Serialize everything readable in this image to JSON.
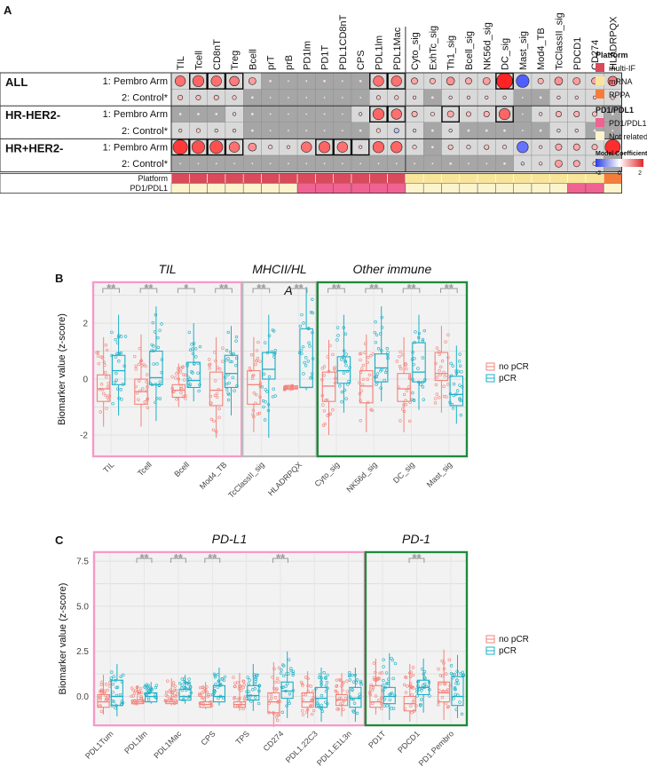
{
  "panels": {
    "a": "A",
    "b": "B",
    "c": "C"
  },
  "heatmap": {
    "columns": [
      "TIL",
      "Tcell",
      "CD8nT",
      "Treg",
      "Bcell",
      "prT",
      "prB",
      "PD1lm",
      "PD1T",
      "PDL1CD8nT",
      "CPS",
      "PDL1lm",
      "PDL1Mac",
      "Cyto_sig",
      "ExhTc_sig",
      "Th1_sig",
      "Bcell_sig",
      "NK56d_sig",
      "DC_sig",
      "Mast_sig",
      "Mod4_TB",
      "TcClassII_sig",
      "PDCD1",
      "CD274",
      "HLADRPQX"
    ],
    "groups": [
      {
        "name": "ALL",
        "rows": [
          "1: Pembro Arm",
          "2: Control*"
        ]
      },
      {
        "name": "HR-HER2-",
        "rows": [
          "1: Pembro Arm",
          "2: Control*"
        ]
      },
      {
        "name": "HR+HER2-",
        "rows": [
          "1: Pembro Arm",
          "2: Control*"
        ]
      }
    ],
    "coefficients": [
      [
        1.3,
        1.4,
        1.3,
        1.2,
        0.9,
        0.3,
        0.1,
        0.2,
        0.3,
        0.2,
        0.3,
        1.3,
        1.3,
        0.8,
        0.7,
        1.0,
        0.8,
        0.9,
        2.0,
        -1.6,
        0.7,
        1.0,
        0.9,
        0.8,
        1.2
      ],
      [
        0.6,
        0.6,
        0.6,
        0.5,
        0.3,
        0.1,
        0.1,
        0.1,
        0.1,
        0.1,
        0.1,
        0.5,
        0.5,
        0.4,
        0.3,
        0.4,
        0.4,
        0.4,
        0.4,
        -0.1,
        0.3,
        0.4,
        0.4,
        0.4,
        0.5
      ],
      [
        0.3,
        0.3,
        0.3,
        0.4,
        0.3,
        0.2,
        0.1,
        0.1,
        0.2,
        0.1,
        0.4,
        1.4,
        1.3,
        0.7,
        0.5,
        0.8,
        0.6,
        0.7,
        1.4,
        0.1,
        0.4,
        0.7,
        0.7,
        0.6,
        0.3
      ],
      [
        0.4,
        0.5,
        0.4,
        0.4,
        0.3,
        0.1,
        0.1,
        0.2,
        0.1,
        0.2,
        0.3,
        0.5,
        -0.6,
        0.4,
        0.3,
        0.4,
        0.3,
        0.3,
        0.3,
        0.2,
        0.3,
        0.4,
        0.4,
        0.3,
        0.2
      ],
      [
        1.8,
        1.6,
        1.6,
        1.3,
        1.0,
        0.5,
        0.4,
        1.3,
        1.4,
        1.3,
        0.4,
        1.4,
        1.4,
        0.5,
        0.3,
        0.6,
        0.5,
        0.6,
        0.5,
        -1.4,
        0.4,
        0.8,
        0.8,
        0.7,
        1.9
      ],
      [
        0.1,
        0.1,
        0.1,
        0.1,
        0.1,
        0.1,
        0.1,
        0.1,
        0.1,
        0.1,
        0.1,
        0.1,
        0.1,
        0.2,
        0.1,
        0.3,
        0.2,
        0.2,
        0.3,
        -0.4,
        0.4,
        0.9,
        0.8,
        0.5,
        0.2
      ]
    ],
    "significant_boxes": [
      [
        0,
        1
      ],
      [
        0,
        2
      ],
      [
        0,
        3
      ],
      [
        0,
        11
      ],
      [
        0,
        12
      ],
      [
        0,
        18
      ],
      [
        2,
        12
      ],
      [
        2,
        11
      ],
      [
        2,
        15
      ],
      [
        2,
        18
      ],
      [
        4,
        0
      ],
      [
        4,
        1
      ],
      [
        4,
        2
      ],
      [
        4,
        3
      ],
      [
        4,
        8
      ],
      [
        4,
        9
      ],
      [
        4,
        10
      ]
    ],
    "annotation_rows": [
      "Platform",
      "PD1/PDL1"
    ],
    "platform": [
      "multi-IF",
      "multi-IF",
      "multi-IF",
      "multi-IF",
      "multi-IF",
      "multi-IF",
      "multi-IF",
      "multi-IF",
      "multi-IF",
      "multi-IF",
      "multi-IF",
      "multi-IF",
      "multi-IF",
      "mRNA",
      "mRNA",
      "mRNA",
      "mRNA",
      "mRNA",
      "mRNA",
      "mRNA",
      "mRNA",
      "mRNA",
      "mRNA",
      "mRNA",
      "RPPA"
    ],
    "pd1pdl1": [
      0,
      0,
      0,
      0,
      0,
      0,
      0,
      1,
      1,
      1,
      1,
      1,
      1,
      0,
      0,
      0,
      0,
      0,
      0,
      0,
      0,
      0,
      1,
      1,
      0
    ],
    "legend": {
      "platform_title": "Platform",
      "platform_items": [
        {
          "label": "multi-IF",
          "color": "#d94a5a"
        },
        {
          "label": "mRNA",
          "color": "#f8e59a"
        },
        {
          "label": "RPPA",
          "color": "#f57d3a"
        }
      ],
      "pd_title": "PD1/PDL1",
      "pd_items": [
        {
          "label": "PD1/PDL1 related",
          "color": "#f06292"
        },
        {
          "label": "Not related",
          "color": "#fdf4cd"
        }
      ],
      "coef_title": "Model Coefficients",
      "coef_ticks": [
        "-2",
        "0",
        "2"
      ]
    }
  },
  "panel_b": {
    "ylabel": "Biomarker value (z-score)",
    "yticks": [
      "2",
      "0",
      "-2"
    ],
    "groups": [
      {
        "label": "TIL",
        "color": "#f49ac8"
      },
      {
        "label": "MHCII/HL",
        "label2": "A",
        "color": "#bbbbbb"
      },
      {
        "label": "Other immune",
        "color": "#1f8a3c"
      }
    ],
    "categories": [
      "TIL",
      "Tcell",
      "Bcell",
      "Mod4_TB",
      "TcClassII_sig",
      "HLADRPQX",
      "Cyto_sig",
      "NK56d_sig",
      "DC_sig",
      "Mast_sig"
    ],
    "sig": [
      "**",
      "**",
      "*",
      "**",
      "**",
      "**",
      "**",
      "**",
      "**",
      "**"
    ],
    "legend": [
      "no pCR",
      "pCR"
    ]
  },
  "panel_c": {
    "ylabel": "Biomarker value (z-score)",
    "yticks": [
      "7.5",
      "5.0",
      "2.5",
      "0.0"
    ],
    "groups": [
      {
        "label": "PD-L1",
        "color": "#f49ac8"
      },
      {
        "label": "PD-1",
        "color": "#1f8a3c"
      }
    ],
    "categories": [
      "PDL1Tum",
      "PDL1lm",
      "PDL1Mac",
      "CPS",
      "TPS",
      "CD274",
      "PDL1.22C3",
      "PDL1.E1L3n",
      "PD1T",
      "PDCD1",
      "PD1.Pembro"
    ],
    "sig": [
      "",
      "**",
      "**",
      "**",
      "",
      "**",
      "",
      "",
      "",
      "**",
      ""
    ],
    "legend": [
      "no pCR",
      "pCR"
    ]
  },
  "chart_data": [
    {
      "type": "heatmap",
      "title": "",
      "rows": [
        "ALL 1: Pembro Arm",
        "ALL 2: Control*",
        "HR-HER2- 1: Pembro Arm",
        "HR-HER2- 2: Control*",
        "HR+HER2- 1: Pembro Arm",
        "HR+HER2- 2: Control*"
      ],
      "note": "values are model coefficients on a -2..2 scale; see heatmap.coefficients"
    },
    {
      "type": "box",
      "categories": [
        "TIL",
        "Tcell",
        "Bcell",
        "Mod4_TB",
        "TcClassII_sig",
        "HLADRPQX",
        "Cyto_sig",
        "NK56d_sig",
        "DC_sig",
        "Mast_sig"
      ],
      "ylabel": "Biomarker value (z-score)",
      "ylim": [
        -2.7,
        3.4
      ],
      "series": [
        {
          "name": "no pCR",
          "color": "#f4827a",
          "q1": [
            -0.8,
            -0.9,
            -0.65,
            -0.95,
            -0.9,
            -0.35,
            -0.8,
            -0.85,
            -0.8,
            -0.05
          ],
          "median": [
            -0.35,
            -0.45,
            -0.4,
            -0.4,
            -0.2,
            -0.35,
            -0.25,
            -0.25,
            -0.35,
            0.2
          ],
          "q3": [
            0.15,
            0.0,
            -0.2,
            0.25,
            0.3,
            -0.25,
            0.25,
            0.3,
            0.2,
            0.95
          ],
          "min": [
            -1.7,
            -1.7,
            -1.0,
            -2.1,
            -1.9,
            -0.4,
            -2.0,
            -1.9,
            -1.9,
            -1.2
          ],
          "max": [
            1.5,
            1.6,
            0.55,
            1.5,
            1.5,
            -0.2,
            1.4,
            1.6,
            1.5,
            1.9
          ]
        },
        {
          "name": "pCR",
          "color": "#1ab0c7",
          "q1": [
            -0.2,
            -0.2,
            -0.3,
            -0.3,
            0.0,
            -0.3,
            -0.15,
            -0.1,
            -0.1,
            -0.95
          ],
          "median": [
            0.3,
            0.05,
            -0.05,
            0.2,
            0.35,
            -0.3,
            0.3,
            0.4,
            0.25,
            -0.55
          ],
          "q3": [
            0.85,
            1.0,
            0.6,
            0.85,
            0.95,
            1.8,
            0.8,
            0.9,
            1.3,
            0.1
          ],
          "min": [
            -1.3,
            -1.5,
            -0.8,
            -1.3,
            -2.1,
            -0.4,
            -1.2,
            -0.8,
            -1.1,
            -1.6
          ],
          "max": [
            2.3,
            2.6,
            2.0,
            1.9,
            2.3,
            3.3,
            2.3,
            2.6,
            2.3,
            1.2
          ]
        }
      ]
    },
    {
      "type": "box",
      "categories": [
        "PDL1Tum",
        "PDL1lm",
        "PDL1Mac",
        "CPS",
        "TPS",
        "CD274",
        "PDL1.22C3",
        "PDL1.E1L3n",
        "PD1T",
        "PDCD1",
        "PD1.Pembro"
      ],
      "ylabel": "Biomarker value (z-score)",
      "ylim": [
        -1.5,
        7.9
      ],
      "series": [
        {
          "name": "no pCR",
          "color": "#f4827a",
          "q1": [
            -0.6,
            -0.4,
            -0.4,
            -0.6,
            -0.6,
            -0.9,
            -0.6,
            -0.5,
            -0.6,
            -0.8,
            -0.3
          ],
          "median": [
            -0.3,
            -0.3,
            -0.3,
            -0.45,
            -0.45,
            -0.3,
            -0.3,
            -0.2,
            -0.3,
            -0.4,
            0.2
          ],
          "q3": [
            0.1,
            -0.2,
            -0.2,
            -0.3,
            -0.3,
            0.2,
            0.2,
            0.1,
            0.6,
            0.0,
            0.8
          ],
          "min": [
            -1.0,
            -0.5,
            -0.5,
            -0.7,
            -0.8,
            -1.7,
            -1.2,
            -1.1,
            -1.0,
            -1.4,
            -1.3
          ],
          "max": [
            1.2,
            0.6,
            1.0,
            0.8,
            1.3,
            1.9,
            1.4,
            1.3,
            2.1,
            1.8,
            2.6
          ]
        },
        {
          "name": "pCR",
          "color": "#1ab0c7",
          "q1": [
            -0.5,
            -0.3,
            -0.2,
            -0.3,
            -0.2,
            -0.1,
            -0.6,
            -0.6,
            -0.4,
            0.1,
            -0.5
          ],
          "median": [
            0.0,
            0.0,
            0.0,
            0.0,
            0.05,
            0.3,
            -0.1,
            -0.1,
            0.0,
            0.5,
            0.0
          ],
          "q3": [
            0.9,
            0.2,
            0.4,
            0.6,
            0.6,
            0.8,
            0.5,
            0.5,
            0.5,
            0.9,
            1.1
          ],
          "min": [
            -1.1,
            -0.4,
            -0.4,
            -0.5,
            -0.8,
            -1.2,
            -1.4,
            -1.4,
            -1.3,
            -0.9,
            -1.2
          ],
          "max": [
            1.8,
            0.8,
            1.2,
            1.6,
            1.8,
            2.5,
            1.6,
            1.6,
            2.4,
            2.1,
            2.3
          ]
        }
      ]
    }
  ]
}
